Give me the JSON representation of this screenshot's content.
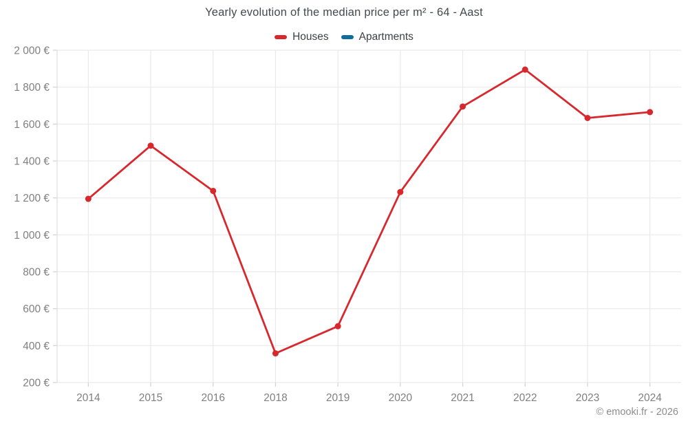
{
  "title": "Yearly evolution of the median price per m² - 64 - Aast",
  "legend": [
    {
      "label": "Houses",
      "color": "#d7282d"
    },
    {
      "label": "Apartments",
      "color": "#0f6d9e"
    }
  ],
  "footer": {
    "copyright": "© emooki.fr - 2026"
  },
  "chart_data": {
    "type": "line",
    "title": "Yearly evolution of the median price per m² - 64 - Aast",
    "categories": [
      "2014",
      "2015",
      "2016",
      "2018",
      "2019",
      "2020",
      "2021",
      "2022",
      "2023",
      "2024"
    ],
    "series": [
      {
        "name": "Houses",
        "color": "#d7282d",
        "values": [
          1195,
          1483,
          1238,
          358,
          505,
          1232,
          1695,
          1895,
          1633,
          1665
        ]
      },
      {
        "name": "Apartments",
        "color": "#0f6d9e",
        "values": []
      }
    ],
    "xlabel": "",
    "ylabel": "",
    "ylim": [
      200,
      2000
    ],
    "ytick_step": 200,
    "ytick_labels": [
      "200 €",
      "400 €",
      "600 €",
      "800 €",
      "1 000 €",
      "1 200 €",
      "1 400 €",
      "1 600 €",
      "1 800 €",
      "2 000 €"
    ],
    "grid": true,
    "legend_position": "top",
    "colors": {
      "grid": "#e9e9e9",
      "axis": "#dddddd",
      "tick": "#d2d2d2"
    }
  }
}
